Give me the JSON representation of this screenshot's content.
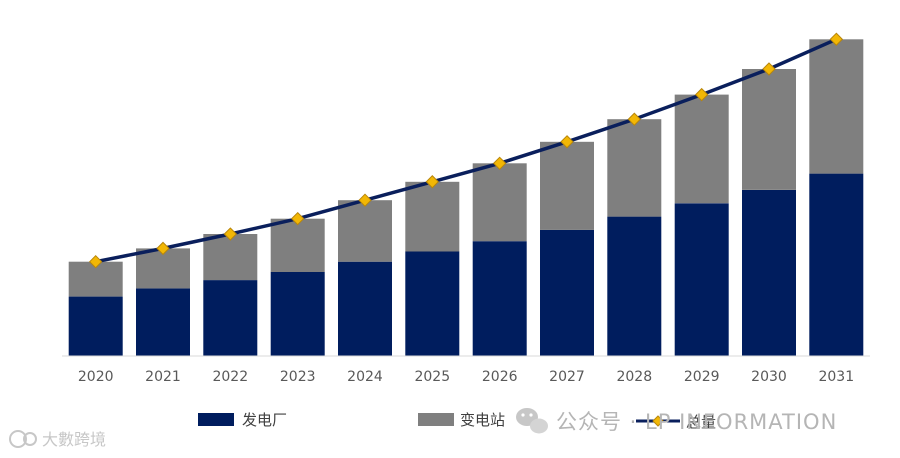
{
  "chart_data": {
    "type": "bar",
    "stacked": true,
    "categories": [
      "2020",
      "2021",
      "2022",
      "2023",
      "2024",
      "2025",
      "2026",
      "2027",
      "2028",
      "2029",
      "2030",
      "2031"
    ],
    "series": [
      {
        "name": "发电厂",
        "type": "bar",
        "color": "#001d5e",
        "values": [
          58,
          66,
          74,
          82,
          92,
          102,
          112,
          123,
          136,
          149,
          162,
          178
        ]
      },
      {
        "name": "变电站",
        "type": "bar",
        "color": "#7f7f7f",
        "values": [
          34,
          39,
          45,
          52,
          60,
          68,
          76,
          86,
          95,
          106,
          118,
          131
        ]
      },
      {
        "name": "总量",
        "type": "line",
        "color": "#0a1f5c",
        "marker_color": "#f2b705",
        "values": [
          92,
          105,
          119,
          134,
          152,
          170,
          188,
          209,
          231,
          255,
          280,
          309
        ]
      }
    ],
    "ylim": [
      0,
      320
    ],
    "grid": false,
    "y_axis_visible": false,
    "legend_position": "bottom"
  },
  "watermarks": {
    "wechat": "公众号 · LP INFORMATION",
    "corner": "大數跨境"
  }
}
